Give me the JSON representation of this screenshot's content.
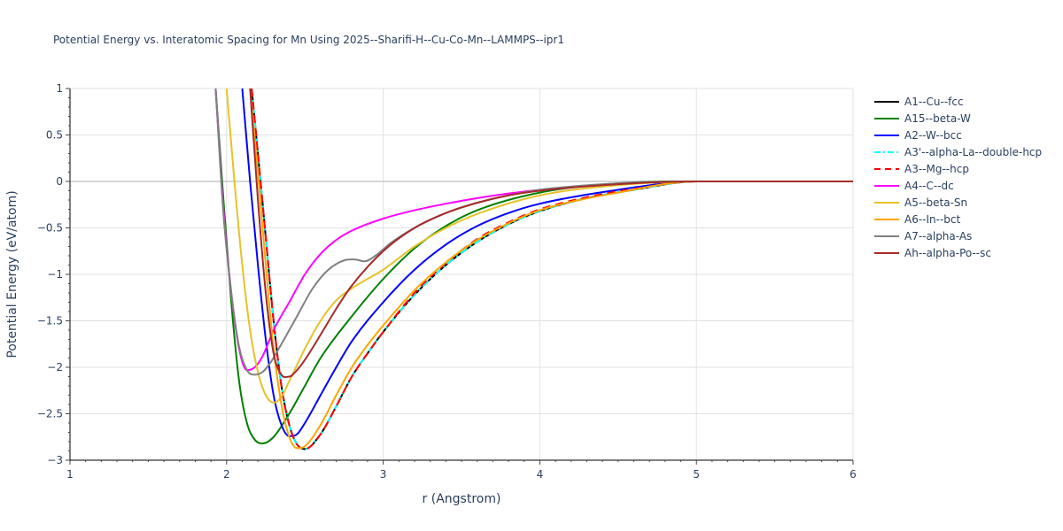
{
  "chart_data": {
    "type": "line",
    "title": "Potential Energy vs. Interatomic Spacing for Mn Using 2025--Sharifi-H--Cu-Co-Mn--LAMMPS--ipr1",
    "xlabel": "r (Angstrom)",
    "ylabel": "Potential Energy (eV/atom)",
    "xlim": [
      1,
      6
    ],
    "ylim": [
      -3,
      1
    ],
    "xticks": [
      1,
      2,
      3,
      4,
      5,
      6
    ],
    "xtick_labels": [
      "1",
      "2",
      "3",
      "4",
      "5",
      "6"
    ],
    "yticks": [
      1,
      0.5,
      0,
      -0.5,
      -1,
      -1.5,
      -2,
      -2.5,
      -3
    ],
    "ytick_labels": [
      "1",
      "0.5",
      "0",
      "−0.5",
      "−1",
      "−1.5",
      "−2",
      "−2.5",
      "−3"
    ],
    "grid": true,
    "legend_position": "right",
    "series": [
      {
        "name": "A1--Cu--fcc",
        "color": "#000000",
        "dash": "solid",
        "x": [
          2.16,
          2.2,
          2.25,
          2.3,
          2.35,
          2.4,
          2.45,
          2.5,
          2.6,
          2.7,
          2.8,
          2.9,
          3.0,
          3.2,
          3.4,
          3.6,
          3.8,
          4.0,
          4.3,
          4.6,
          5.0,
          5.5,
          6.0
        ],
        "y": [
          1.0,
          0.3,
          -0.6,
          -1.5,
          -2.2,
          -2.62,
          -2.83,
          -2.88,
          -2.72,
          -2.42,
          -2.1,
          -1.85,
          -1.62,
          -1.22,
          -0.9,
          -0.65,
          -0.46,
          -0.32,
          -0.18,
          -0.09,
          0.0,
          0.0,
          0.0
        ]
      },
      {
        "name": "A15--beta-W",
        "color": "#008000",
        "dash": "solid",
        "x": [
          1.93,
          1.98,
          2.03,
          2.08,
          2.13,
          2.18,
          2.23,
          2.3,
          2.4,
          2.5,
          2.6,
          2.8,
          3.0,
          3.2,
          3.4,
          3.6,
          4.0,
          4.5,
          5.0,
          6.0
        ],
        "y": [
          1.0,
          -0.2,
          -1.3,
          -2.15,
          -2.6,
          -2.78,
          -2.82,
          -2.75,
          -2.5,
          -2.2,
          -1.9,
          -1.45,
          -1.05,
          -0.72,
          -0.48,
          -0.31,
          -0.12,
          -0.02,
          0.0,
          0.0
        ]
      },
      {
        "name": "A2--W--bcc",
        "color": "#0000ff",
        "dash": "solid",
        "x": [
          2.1,
          2.15,
          2.2,
          2.25,
          2.3,
          2.35,
          2.4,
          2.45,
          2.5,
          2.6,
          2.7,
          2.8,
          3.0,
          3.2,
          3.4,
          3.6,
          3.8,
          4.0,
          4.5,
          5.0,
          6.0
        ],
        "y": [
          1.0,
          0.0,
          -0.9,
          -1.7,
          -2.3,
          -2.62,
          -2.74,
          -2.72,
          -2.6,
          -2.3,
          -2.0,
          -1.72,
          -1.3,
          -0.95,
          -0.68,
          -0.48,
          -0.34,
          -0.24,
          -0.09,
          0.0,
          0.0
        ]
      },
      {
        "name": "A3'--alpha-La--double-hcp",
        "color": "#00ffff",
        "dash": "dashdot",
        "x": [
          2.16,
          2.2,
          2.25,
          2.3,
          2.35,
          2.4,
          2.45,
          2.5,
          2.6,
          2.7,
          2.8,
          2.9,
          3.0,
          3.2,
          3.4,
          3.6,
          3.8,
          4.0,
          4.3,
          4.6,
          5.0,
          5.5,
          6.0
        ],
        "y": [
          1.0,
          0.3,
          -0.6,
          -1.5,
          -2.2,
          -2.62,
          -2.83,
          -2.88,
          -2.72,
          -2.42,
          -2.1,
          -1.85,
          -1.62,
          -1.22,
          -0.9,
          -0.65,
          -0.46,
          -0.32,
          -0.18,
          -0.09,
          0.0,
          0.0,
          0.0
        ]
      },
      {
        "name": "A3--Mg--hcp",
        "color": "#ff0000",
        "dash": "dash",
        "x": [
          2.16,
          2.2,
          2.25,
          2.3,
          2.35,
          2.4,
          2.45,
          2.5,
          2.6,
          2.7,
          2.8,
          2.9,
          3.0,
          3.2,
          3.4,
          3.6,
          3.8,
          4.0,
          4.3,
          4.6,
          5.0,
          5.5,
          6.0
        ],
        "y": [
          1.0,
          0.3,
          -0.6,
          -1.5,
          -2.2,
          -2.62,
          -2.83,
          -2.88,
          -2.72,
          -2.42,
          -2.1,
          -1.85,
          -1.62,
          -1.2,
          -0.88,
          -0.62,
          -0.44,
          -0.3,
          -0.17,
          -0.08,
          0.0,
          0.0,
          0.0
        ]
      },
      {
        "name": "A4--C--dc",
        "color": "#ff00ff",
        "dash": "solid",
        "x": [
          1.93,
          1.98,
          2.03,
          2.08,
          2.13,
          2.18,
          2.23,
          2.3,
          2.4,
          2.5,
          2.6,
          2.7,
          2.8,
          3.0,
          3.2,
          3.4,
          3.6,
          3.8,
          4.0,
          4.5,
          5.0,
          6.0
        ],
        "y": [
          1.0,
          -0.3,
          -1.2,
          -1.8,
          -2.03,
          -2.0,
          -1.88,
          -1.6,
          -1.3,
          -1.0,
          -0.78,
          -0.63,
          -0.53,
          -0.4,
          -0.31,
          -0.24,
          -0.18,
          -0.13,
          -0.09,
          -0.03,
          0.0,
          0.0
        ]
      },
      {
        "name": "A5--beta-Sn",
        "color": "#e6c229",
        "dash": "solid",
        "x": [
          2.0,
          2.05,
          2.1,
          2.15,
          2.2,
          2.25,
          2.3,
          2.35,
          2.4,
          2.5,
          2.6,
          2.7,
          2.8,
          3.0,
          3.2,
          3.4,
          3.6,
          4.0,
          4.5,
          5.0,
          6.0
        ],
        "y": [
          1.0,
          0.0,
          -0.9,
          -1.6,
          -2.05,
          -2.3,
          -2.38,
          -2.32,
          -2.15,
          -1.8,
          -1.5,
          -1.28,
          -1.15,
          -0.95,
          -0.7,
          -0.5,
          -0.35,
          -0.15,
          -0.04,
          0.0,
          0.0
        ]
      },
      {
        "name": "A6--In--bct",
        "color": "#ffa500",
        "dash": "solid",
        "x": [
          2.15,
          2.2,
          2.25,
          2.3,
          2.35,
          2.4,
          2.45,
          2.5,
          2.6,
          2.7,
          2.8,
          2.9,
          3.0,
          3.2,
          3.4,
          3.6,
          3.8,
          4.0,
          4.5,
          5.0,
          6.0
        ],
        "y": [
          1.0,
          0.1,
          -0.9,
          -1.8,
          -2.4,
          -2.75,
          -2.87,
          -2.85,
          -2.62,
          -2.3,
          -2.0,
          -1.76,
          -1.55,
          -1.17,
          -0.87,
          -0.63,
          -0.45,
          -0.31,
          -0.12,
          0.0,
          0.0
        ]
      },
      {
        "name": "A7--alpha-As",
        "color": "#808080",
        "dash": "solid",
        "x": [
          1.93,
          1.98,
          2.03,
          2.08,
          2.13,
          2.18,
          2.23,
          2.28,
          2.35,
          2.45,
          2.55,
          2.65,
          2.75,
          2.82,
          2.88,
          2.95,
          3.05,
          3.2,
          3.4,
          3.6,
          3.8,
          4.0,
          4.5,
          5.0,
          6.0
        ],
        "y": [
          1.0,
          -0.35,
          -1.2,
          -1.78,
          -2.03,
          -2.08,
          -2.05,
          -1.95,
          -1.75,
          -1.45,
          -1.15,
          -0.95,
          -0.85,
          -0.84,
          -0.86,
          -0.8,
          -0.66,
          -0.5,
          -0.34,
          -0.23,
          -0.15,
          -0.09,
          -0.02,
          0.0,
          0.0
        ]
      },
      {
        "name": "Ah--alpha-Po--sc",
        "color": "#a52a2a",
        "dash": "solid",
        "x": [
          2.15,
          2.2,
          2.25,
          2.3,
          2.35,
          2.4,
          2.45,
          2.5,
          2.6,
          2.7,
          2.8,
          3.0,
          3.2,
          3.4,
          3.6,
          3.8,
          4.0,
          4.5,
          5.0,
          6.0
        ],
        "y": [
          1.0,
          -0.2,
          -1.2,
          -1.85,
          -2.08,
          -2.1,
          -2.03,
          -1.92,
          -1.65,
          -1.37,
          -1.12,
          -0.75,
          -0.5,
          -0.34,
          -0.23,
          -0.15,
          -0.1,
          -0.03,
          0.0,
          0.0
        ]
      }
    ]
  }
}
